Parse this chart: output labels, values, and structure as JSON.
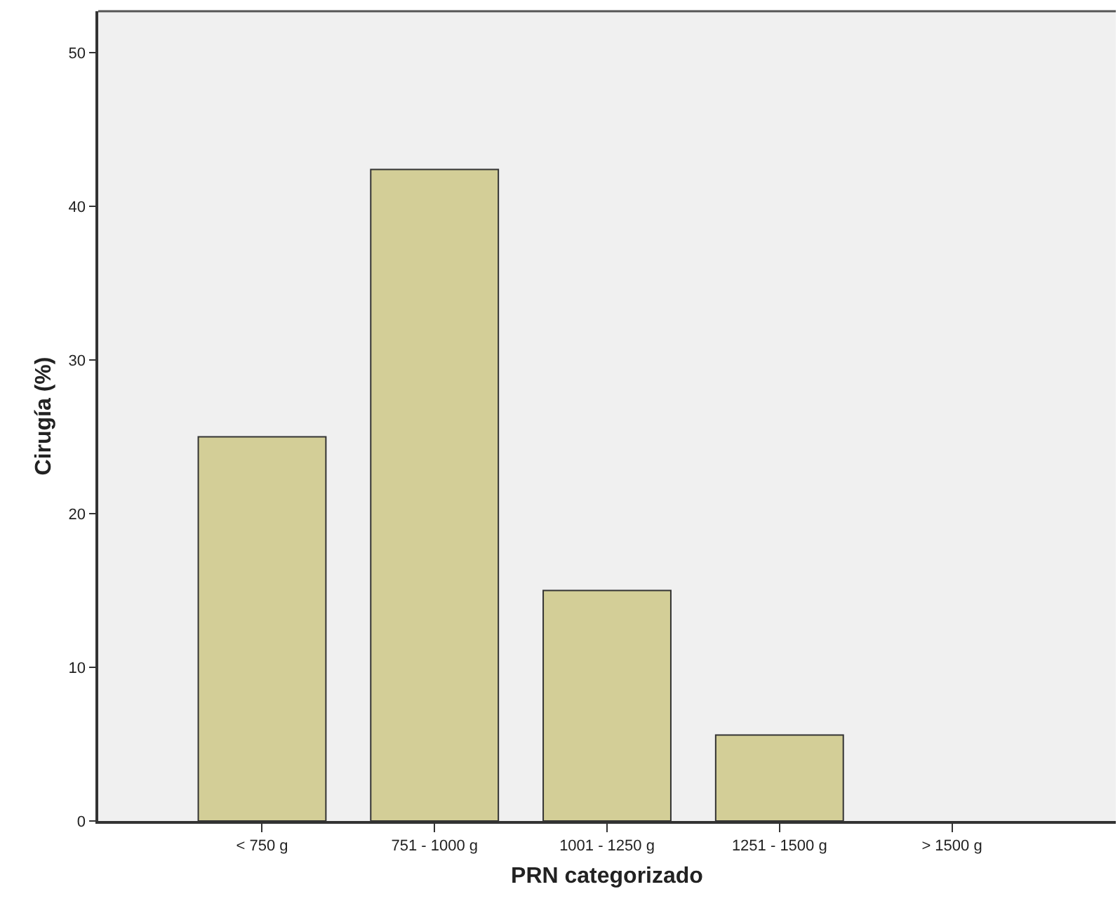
{
  "chart_data": {
    "type": "bar",
    "xlabel": "PRN categorizado",
    "ylabel": "Cirugía (%)",
    "categories": [
      "< 750 g",
      "751 - 1000 g",
      "1001 - 1250 g",
      "1251 - 1500 g",
      "> 1500 g"
    ],
    "values": [
      25.0,
      42.4,
      15.0,
      5.6,
      0
    ],
    "color": "#d3ce97",
    "ylim": [
      0,
      52.7
    ],
    "yticks": [
      0,
      10,
      20,
      30,
      40,
      50
    ],
    "grid": false
  }
}
